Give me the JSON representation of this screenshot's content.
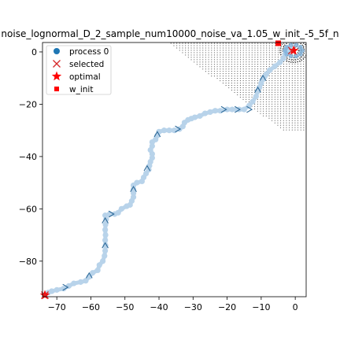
{
  "chart_data": {
    "type": "scatter",
    "title": "noise_lognormal_D_2_sample_num10000_noise_va_1.05_w_init_-5_5f_n",
    "xlabel": "",
    "ylabel": "",
    "xlim": [
      -74.2,
      3.2
    ],
    "ylim": [
      -93.6,
      3.6
    ],
    "xticks": [
      -70,
      -60,
      -50,
      -40,
      -30,
      -20,
      -10,
      0
    ],
    "xtick_labels": [
      "−70",
      "−60",
      "−50",
      "−40",
      "−30",
      "−20",
      "−10",
      "0"
    ],
    "yticks": [
      0,
      -20,
      -40,
      -60,
      -80
    ],
    "ytick_labels": [
      "0",
      "−20",
      "−40",
      "−60",
      "−80"
    ],
    "grid": false,
    "legend_position": "top-left",
    "legend": [
      {
        "label": "process 0",
        "marker": "circle",
        "color": "#1f77b4"
      },
      {
        "label": "selected",
        "marker": "x",
        "color": "#d62728"
      },
      {
        "label": "optimal",
        "marker": "star",
        "color": "#ff0000"
      },
      {
        "label": "w_init",
        "marker": "square",
        "color": "#ff0000"
      }
    ],
    "colors": {
      "trajectory": "#b8d3ea",
      "arrow": "#2e6a99",
      "selected": "#d62728",
      "optimal": "#ff0000",
      "w_init": "#ff0000",
      "field": "#222222"
    },
    "trajectory": [
      [
        -73.5,
        -93.0
      ],
      [
        -72.5,
        -92.0
      ],
      [
        -71.5,
        -91.5
      ],
      [
        -70.0,
        -91.0
      ],
      [
        -68.0,
        -90.5
      ],
      [
        -66.5,
        -89.5
      ],
      [
        -65.0,
        -88.5
      ],
      [
        -63.0,
        -88.0
      ],
      [
        -61.5,
        -87.5
      ],
      [
        -60.5,
        -86.0
      ],
      [
        -59.5,
        -84.5
      ],
      [
        -58.0,
        -83.5
      ],
      [
        -57.5,
        -81.5
      ],
      [
        -56.5,
        -80.0
      ],
      [
        -56.0,
        -78.0
      ],
      [
        -55.8,
        -76.0
      ],
      [
        -55.7,
        -74.0
      ],
      [
        -55.8,
        -72.0
      ],
      [
        -55.7,
        -70.0
      ],
      [
        -55.8,
        -68.0
      ],
      [
        -55.7,
        -66.0
      ],
      [
        -55.5,
        -64.0
      ],
      [
        -55.8,
        -62.5
      ],
      [
        -54.5,
        -62.0
      ],
      [
        -53.0,
        -62.0
      ],
      [
        -52.0,
        -61.5
      ],
      [
        -51.0,
        -60.0
      ],
      [
        -49.5,
        -59.0
      ],
      [
        -48.5,
        -58.5
      ],
      [
        -48.0,
        -57.0
      ],
      [
        -47.5,
        -55.5
      ],
      [
        -47.5,
        -54.0
      ],
      [
        -47.5,
        -52.5
      ],
      [
        -47.5,
        -51.0
      ],
      [
        -46.5,
        -50.0
      ],
      [
        -45.0,
        -49.5
      ],
      [
        -44.5,
        -48.0
      ],
      [
        -43.8,
        -46.5
      ],
      [
        -43.0,
        -45.0
      ],
      [
        -42.8,
        -43.5
      ],
      [
        -42.5,
        -42.0
      ],
      [
        -42.0,
        -40.5
      ],
      [
        -42.0,
        -39.0
      ],
      [
        -42.5,
        -37.5
      ],
      [
        -42.0,
        -36.0
      ],
      [
        -42.0,
        -34.5
      ],
      [
        -41.0,
        -33.5
      ],
      [
        -40.5,
        -32.0
      ],
      [
        -40.0,
        -30.5
      ],
      [
        -38.5,
        -30.0
      ],
      [
        -37.0,
        -30.0
      ],
      [
        -35.5,
        -30.0
      ],
      [
        -34.0,
        -29.5
      ],
      [
        -33.0,
        -28.5
      ],
      [
        -32.5,
        -27.0
      ],
      [
        -31.5,
        -26.0
      ],
      [
        -30.5,
        -25.5
      ],
      [
        -29.5,
        -25.0
      ],
      [
        -28.0,
        -24.5
      ],
      [
        -26.5,
        -23.5
      ],
      [
        -25.0,
        -23.0
      ],
      [
        -23.5,
        -22.5
      ],
      [
        -22.0,
        -22.5
      ],
      [
        -20.0,
        -22.0
      ],
      [
        -18.5,
        -22.0
      ],
      [
        -16.5,
        -22.0
      ],
      [
        -15.0,
        -22.0
      ],
      [
        -13.5,
        -20.5
      ],
      [
        -12.5,
        -19.0
      ],
      [
        -11.5,
        -17.0
      ],
      [
        -11.0,
        -15.0
      ],
      [
        -10.5,
        -13.5
      ],
      [
        -10.0,
        -12.0
      ],
      [
        -9.5,
        -10.5
      ],
      [
        -9.0,
        -9.5
      ],
      [
        -8.5,
        -8.5
      ],
      [
        -7.5,
        -7.0
      ],
      [
        -6.0,
        -5.5
      ],
      [
        -4.5,
        -4.0
      ],
      [
        -3.5,
        -2.5
      ],
      [
        -3.0,
        -1.0
      ],
      [
        -2.5,
        0.5
      ],
      [
        -2.0,
        1.5
      ],
      [
        -1.5,
        1.0
      ],
      [
        -1.0,
        0.5
      ]
    ],
    "arrows": [
      {
        "x": -55.8,
        "y": -74.0,
        "dx": 0,
        "dy": 1
      },
      {
        "x": -55.8,
        "y": -64.5,
        "dx": 0,
        "dy": 1
      },
      {
        "x": -54.0,
        "y": -62.0,
        "dx": 1,
        "dy": 0
      },
      {
        "x": -60.5,
        "y": -85.5,
        "dx": 0,
        "dy": 1
      },
      {
        "x": -47.5,
        "y": -52.5,
        "dx": 0,
        "dy": 1
      },
      {
        "x": -43.5,
        "y": -44.5,
        "dx": 0,
        "dy": 1
      },
      {
        "x": -40.5,
        "y": -31.5,
        "dx": 0,
        "dy": 1
      },
      {
        "x": -34.5,
        "y": -29.5,
        "dx": 1,
        "dy": 0
      },
      {
        "x": -21.0,
        "y": -22.0,
        "dx": 1,
        "dy": 0
      },
      {
        "x": -17.0,
        "y": -22.0,
        "dx": 1,
        "dy": 0
      },
      {
        "x": -13.5,
        "y": -22.0,
        "dx": 1,
        "dy": 0
      },
      {
        "x": -67.5,
        "y": -90.0,
        "dx": 1,
        "dy": 0
      },
      {
        "x": -11.0,
        "y": -14.5,
        "dx": 0,
        "dy": 1
      },
      {
        "x": -9.5,
        "y": -10.0,
        "dx": 0,
        "dy": 1
      }
    ],
    "selected": [
      {
        "x": -73.5,
        "y": -93.0
      },
      {
        "x": -1.0,
        "y": 0.5
      }
    ],
    "optimal": [
      {
        "x": -73.5,
        "y": -93.0
      },
      {
        "x": -0.5,
        "y": 0.5
      }
    ],
    "w_init": [
      {
        "x": -5.0,
        "y": 3.3
      }
    ],
    "vector_field_region": {
      "x_min": -40.0,
      "x_max": 3.2,
      "y_min": -30.0,
      "y_max": 3.6
    },
    "contour_center": {
      "x": -0.5,
      "y": 0.5
    }
  }
}
